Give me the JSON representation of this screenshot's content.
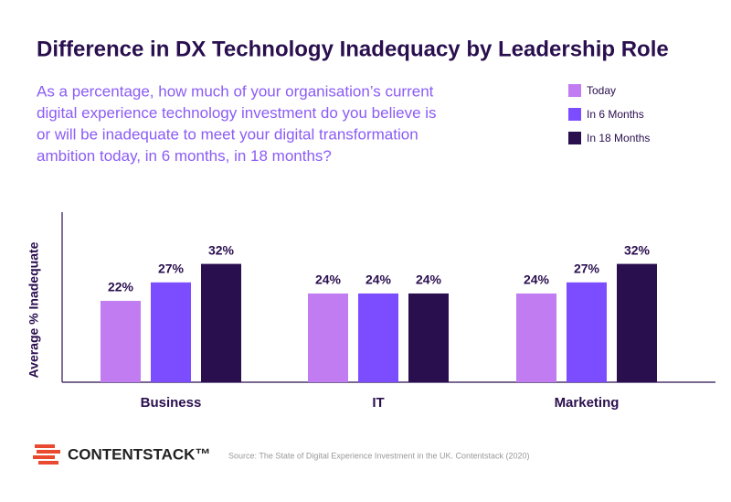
{
  "chart_data": {
    "type": "bar",
    "title": "Difference in DX Technology Inadequacy by Leadership Role",
    "subtitle": [
      "As a percentage, how much of your organisation’s current",
      "digital experience technology investment do you believe is",
      "or will be inadequate to meet your digital transformation",
      "ambition today, in 6 months, in 18 months?"
    ],
    "y_label": "Average % Inadequate",
    "categories": [
      "Business",
      "IT",
      "Marketing"
    ],
    "series": [
      {
        "name": "Today",
        "color": "#c17cf2",
        "values": [
          22,
          24,
          24
        ],
        "value_labels": [
          "22%",
          "24%",
          "24%"
        ]
      },
      {
        "name": "In 6 Months",
        "color": "#7c4dff",
        "values": [
          27,
          24,
          27
        ],
        "value_labels": [
          "27%",
          "24%",
          "27%"
        ]
      },
      {
        "name": "In 18 Months",
        "color": "#2a0f4f",
        "values": [
          32,
          24,
          32
        ],
        "value_labels": [
          "32%",
          "24%",
          "32%"
        ]
      }
    ],
    "ylim": [
      0,
      46
    ],
    "legend": "top-right",
    "brand": "CONTENTSTACK™",
    "source": "Source: The State of Digital Experience Investment in the UK. Contentstack (2020)"
  }
}
